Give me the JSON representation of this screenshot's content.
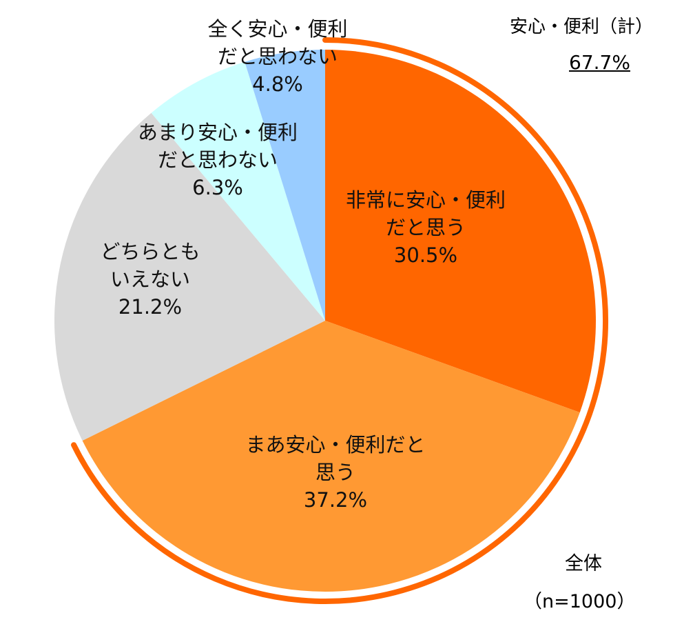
{
  "chart_data": {
    "type": "pie",
    "title": "",
    "start": "top",
    "direction": "clockwise",
    "slices": [
      {
        "label_lines": [
          "非常に安心・便利",
          "だと思う"
        ],
        "value": 30.5,
        "value_label": "30.5%",
        "color": "#FF6600"
      },
      {
        "label_lines": [
          "まあ安心・便利だと",
          "思う"
        ],
        "value": 37.2,
        "value_label": "37.2%",
        "color": "#FF9933"
      },
      {
        "label_lines": [
          "どちらとも",
          "いえない"
        ],
        "value": 21.2,
        "value_label": "21.2%",
        "color": "#D9D9D9"
      },
      {
        "label_lines": [
          "あまり安心・便利",
          "だと思わない"
        ],
        "value": 6.3,
        "value_label": "6.3%",
        "color": "#CCFFFF"
      },
      {
        "label_lines": [
          "全く安心・便利",
          "だと思わない"
        ],
        "value": 4.8,
        "value_label": "4.8%",
        "color": "#99CCFF"
      }
    ],
    "bracket": {
      "label": "安心・便利（計）",
      "value": 67.7,
      "value_label": "67.7%",
      "color": "#FF6600"
    },
    "group": "全体",
    "sample": "（n=1000）"
  }
}
